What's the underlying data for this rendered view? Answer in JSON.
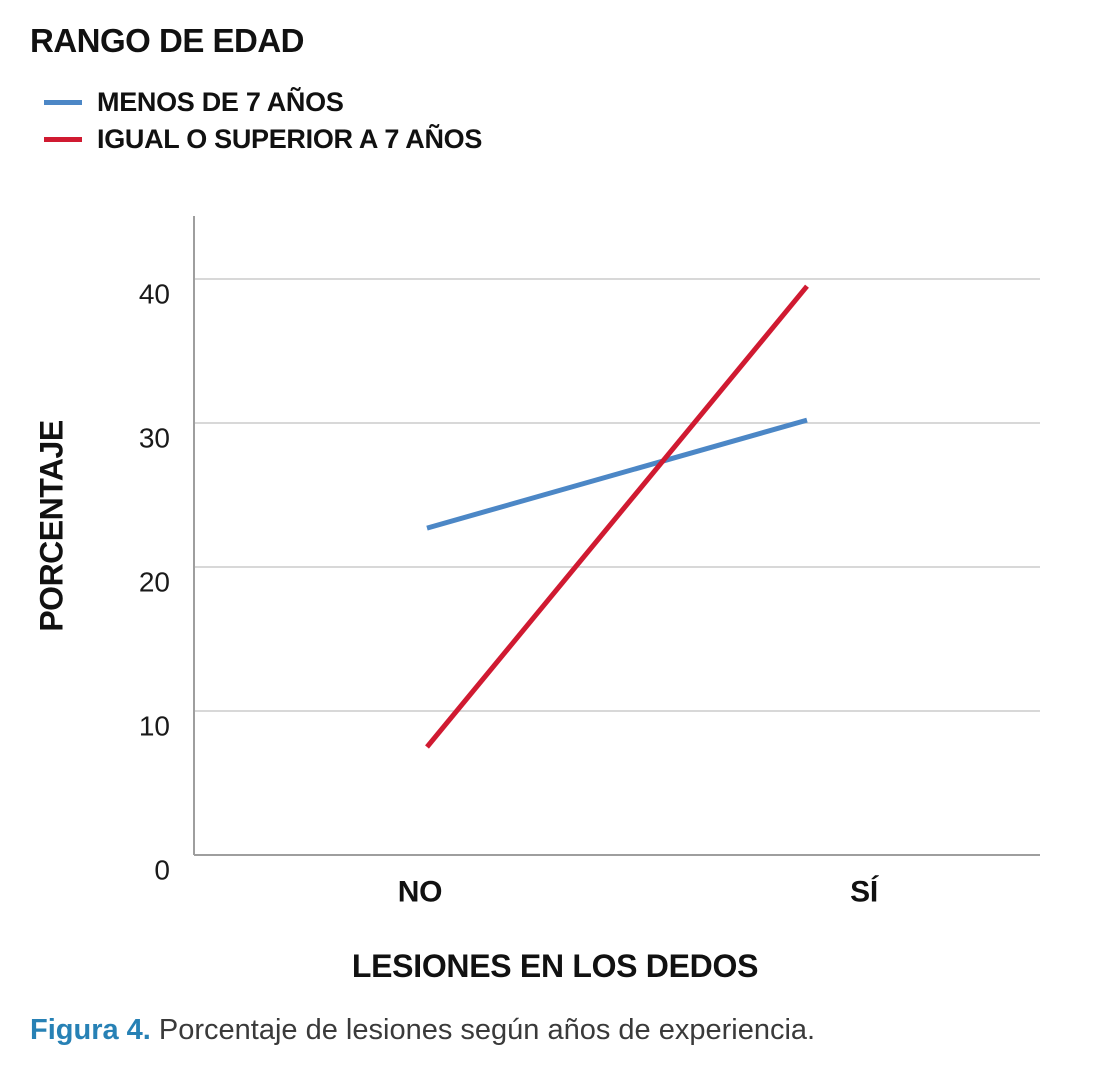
{
  "legend": {
    "title": "RANGO DE EDAD",
    "items": [
      {
        "label": "MENOS DE 7 AÑOS",
        "color": "#4C87C6"
      },
      {
        "label": "IGUAL O SUPERIOR A 7 AÑOS",
        "color": "#D01A31"
      }
    ]
  },
  "chart_data": {
    "type": "line",
    "categories": [
      "NO",
      "SÍ"
    ],
    "series": [
      {
        "name": "MENOS DE 7 AÑOS",
        "color": "#4C87C6",
        "values": [
          22.7,
          30.2
        ]
      },
      {
        "name": "IGUAL O SUPERIOR A 7 AÑOS",
        "color": "#D01A31",
        "values": [
          7.5,
          39.5
        ]
      }
    ],
    "xlabel": "LESIONES EN LOS DEDOS",
    "ylabel": "PORCENTAJE",
    "yticks": [
      0,
      10,
      20,
      30,
      40
    ],
    "ylim": [
      0,
      44
    ],
    "grid": "horizontal",
    "legend_position": "top-left"
  },
  "caption": {
    "prefix": "Figura 4.",
    "rest": " Porcentaje de lesiones según años de experiencia."
  },
  "colors": {
    "accent_blue": "#4C87C6",
    "accent_red": "#D01A31",
    "caption_blue": "#2781B5",
    "grid": "#CBCBCB",
    "axis": "#9E9E9E"
  }
}
